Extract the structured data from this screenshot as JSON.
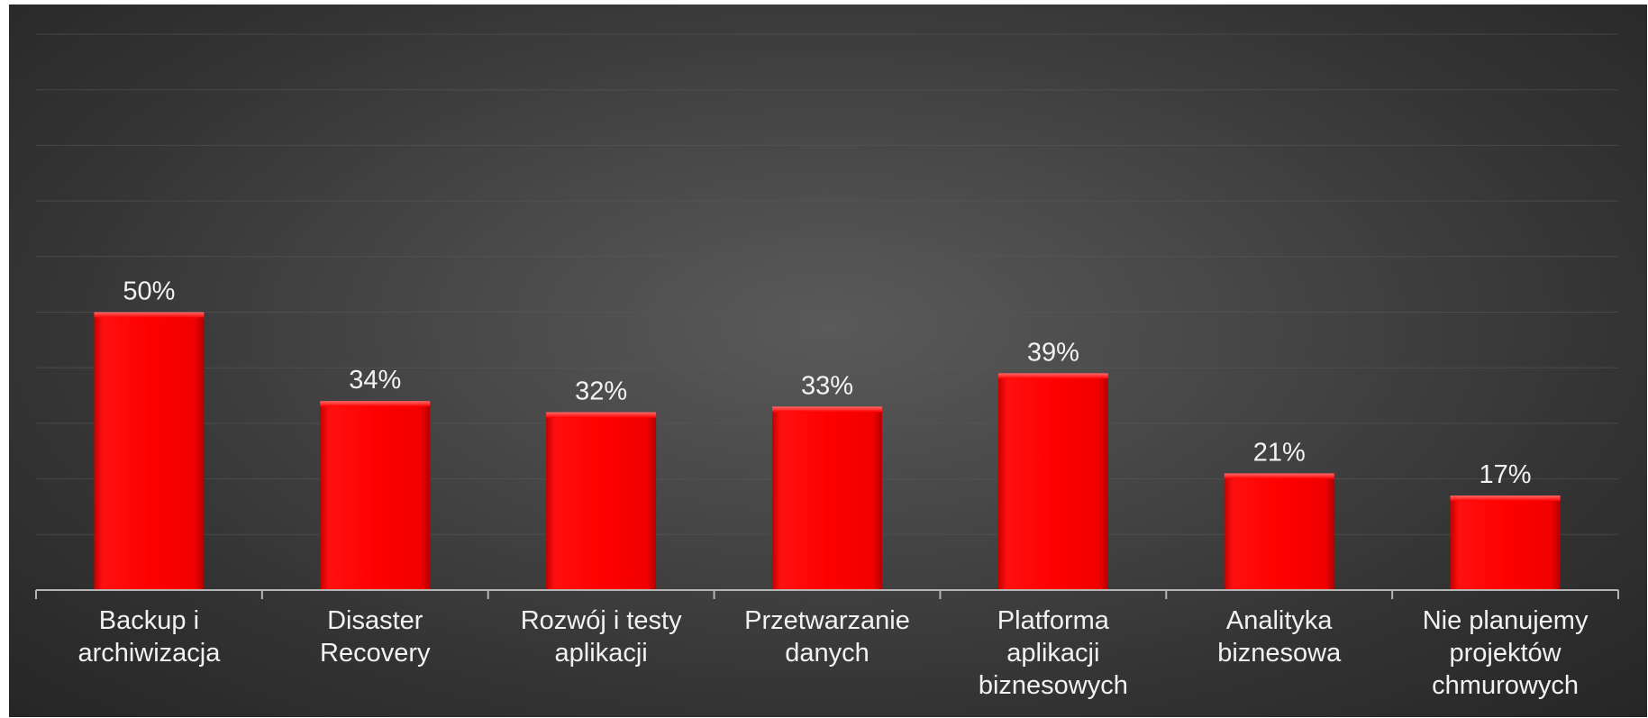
{
  "chart_data": {
    "type": "bar",
    "categories": [
      [
        "Backup i",
        "archiwizacja"
      ],
      [
        "Disaster",
        "Recovery"
      ],
      [
        "Rozwój i testy",
        "aplikacji"
      ],
      [
        "Przetwarzanie",
        "danych"
      ],
      [
        "Platforma",
        "aplikacji",
        "biznesowych"
      ],
      [
        "Analityka",
        "biznesowa"
      ],
      [
        "Nie planujemy",
        "projektów",
        "chmurowych"
      ]
    ],
    "values": [
      50,
      34,
      32,
      33,
      39,
      21,
      17
    ],
    "value_labels": [
      "50%",
      "34%",
      "32%",
      "33%",
      "39%",
      "21%",
      "17%"
    ],
    "ylim": [
      0,
      100
    ],
    "grid": true,
    "bar_color": "#ff0000"
  }
}
